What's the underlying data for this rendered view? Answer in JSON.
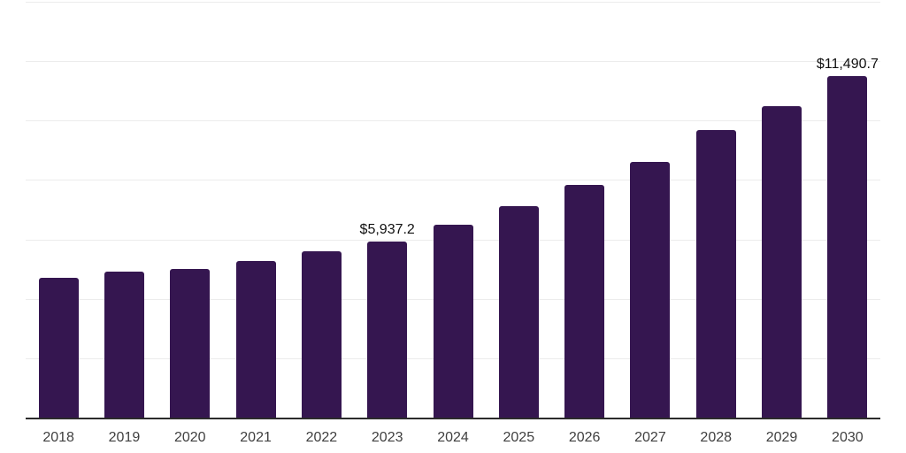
{
  "chart_data": {
    "type": "bar",
    "title": "",
    "xlabel": "",
    "ylabel": "",
    "categories": [
      "2018",
      "2019",
      "2020",
      "2021",
      "2022",
      "2023",
      "2024",
      "2025",
      "2026",
      "2027",
      "2028",
      "2029",
      "2030"
    ],
    "values": [
      4720,
      4930,
      4990,
      5260,
      5600,
      5937.2,
      6500,
      7130,
      7830,
      8610,
      9680,
      10480,
      11490.7
    ],
    "labeled_points": [
      {
        "category": "2023",
        "label": "$5,937.2"
      },
      {
        "category": "2030",
        "label": "$11,490.7"
      }
    ],
    "ylim": [
      0,
      14000
    ],
    "gridlines": [
      2000,
      4000,
      6000,
      8000,
      10000,
      12000,
      14000
    ],
    "grid": "horizontal-only",
    "legend": "none",
    "y_axis_tick_labels": "none",
    "colors": {
      "bar": "#351650",
      "axis_line": "#2b2b2b",
      "gridline": "#ececec",
      "value_label": "#111111",
      "tick_label": "#3f3f3f",
      "background": "#ffffff"
    }
  }
}
